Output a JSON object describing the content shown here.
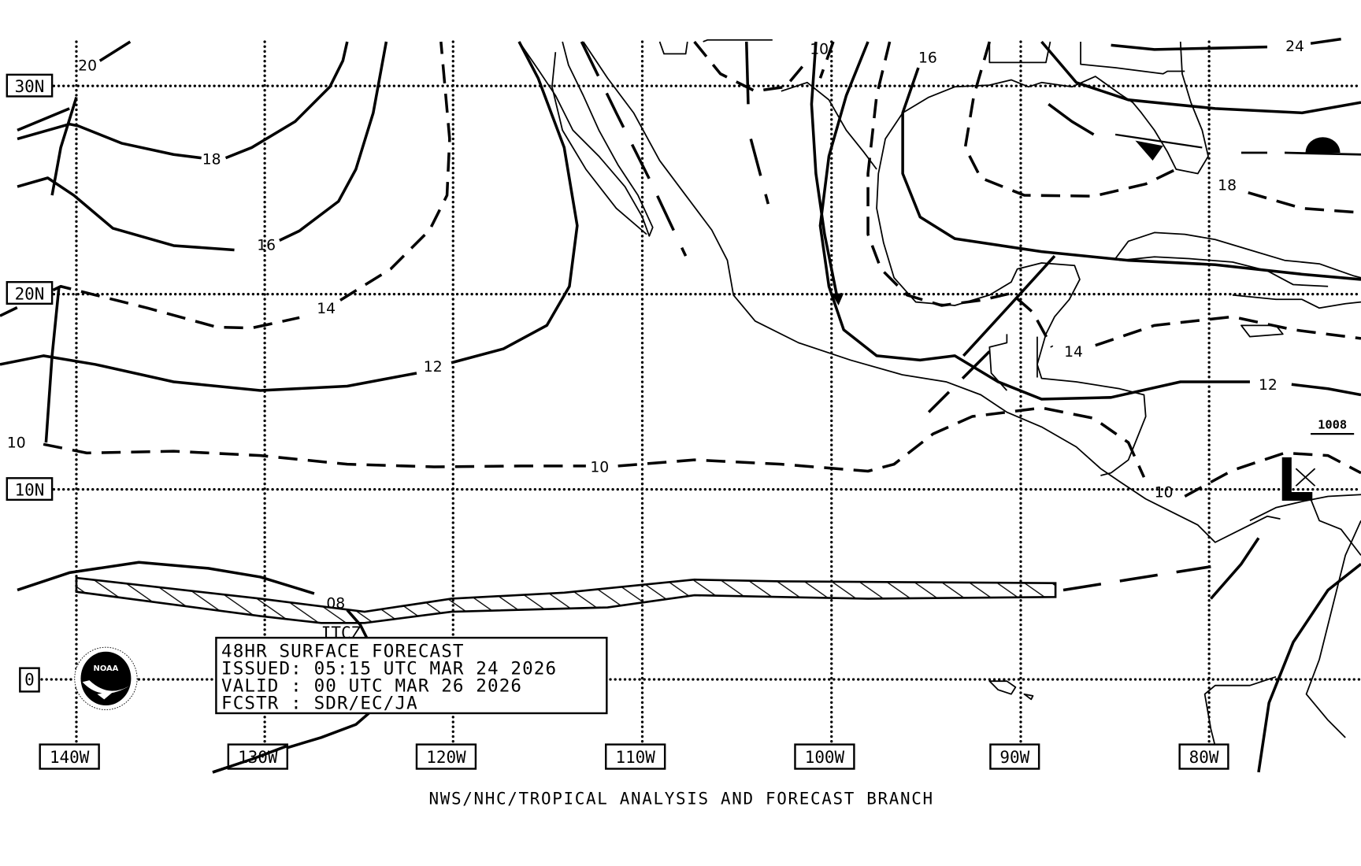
{
  "map": {
    "latitude_labels": [
      "30N",
      "20N",
      "10N",
      "0"
    ],
    "longitude_labels": [
      "140W",
      "130W",
      "120W",
      "110W",
      "100W",
      "90W",
      "80W"
    ],
    "isobar_labels": [
      "20",
      "18",
      "16",
      "14",
      "12",
      "10",
      "10",
      "08",
      "10",
      "16",
      "24",
      "18",
      "14",
      "12",
      "10"
    ],
    "itcz_label": "ITCZ",
    "low_center": {
      "symbol": "L",
      "pressure": "1008"
    }
  },
  "info_box": {
    "line1": "48HR SURFACE FORECAST",
    "line2": "ISSUED: 05:15 UTC MAR 24 2026",
    "line3": "VALID : 00 UTC MAR 26 2026",
    "line4": "FCSTR : SDR/EC/JA"
  },
  "logo": {
    "center_text": "NOAA",
    "ring_text": "NATIONAL OCEANIC AND ATMOSPHERIC ADMINISTRATION · U.S. DEPARTMENT OF COMMERCE"
  },
  "footer": "NWS/NHC/TROPICAL ANALYSIS AND FORECAST BRANCH",
  "colors": {
    "ink": "#000000",
    "background": "#ffffff"
  }
}
